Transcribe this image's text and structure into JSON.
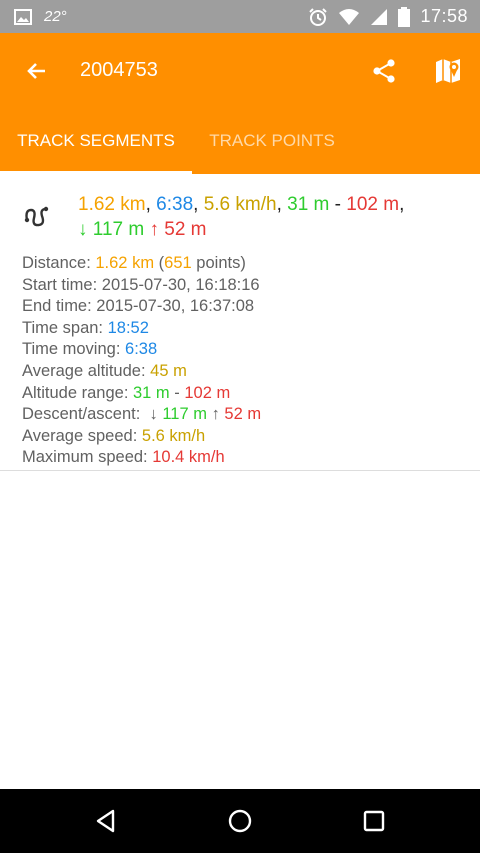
{
  "status_bar": {
    "temperature": "22°",
    "time": "17:58",
    "icons": [
      "image-icon",
      "alarm-icon",
      "wifi-icon",
      "signal-icon",
      "battery-icon"
    ]
  },
  "app_bar": {
    "title": "2004753",
    "background_color": "#ff8f00"
  },
  "tabs": [
    {
      "label": "TRACK SEGMENTS",
      "selected": true
    },
    {
      "label": "TRACK POINTS",
      "selected": false
    }
  ],
  "segment": {
    "summary": {
      "distance": "1.62 km",
      "moving_time": "6:38",
      "avg_speed": "5.6 km/h",
      "alt_min": "31 m",
      "alt_max": "102 m",
      "descent": "117 m",
      "ascent": "52 m"
    },
    "details": {
      "distance_label": "Distance:",
      "distance_value": "1.62 km",
      "points_count": "651",
      "points_suffix": "points",
      "start_label": "Start time:",
      "start_value": "2015-07-30, 16:18:16",
      "end_label": "End time:",
      "end_value": "2015-07-30, 16:37:08",
      "span_label": "Time span:",
      "span_value": "18:52",
      "moving_label": "Time moving:",
      "moving_value": "6:38",
      "avg_alt_label": "Average altitude:",
      "avg_alt_value": "45 m",
      "alt_range_label": "Altitude range:",
      "alt_range_min": "31 m",
      "alt_range_max": "102 m",
      "desc_asc_label": "Descent/ascent:",
      "descent_value": "117 m",
      "ascent_value": "52 m",
      "avg_speed_label": "Average speed:",
      "avg_speed_value": "5.6 km/h",
      "max_speed_label": "Maximum speed:",
      "max_speed_value": "10.4 km/h"
    }
  },
  "colors": {
    "distance": "#f5a200",
    "time": "#1e88e5",
    "speed_altitude": "#c9a100",
    "descent_low": "#2ecc2e",
    "ascent_high": "#e53935"
  }
}
